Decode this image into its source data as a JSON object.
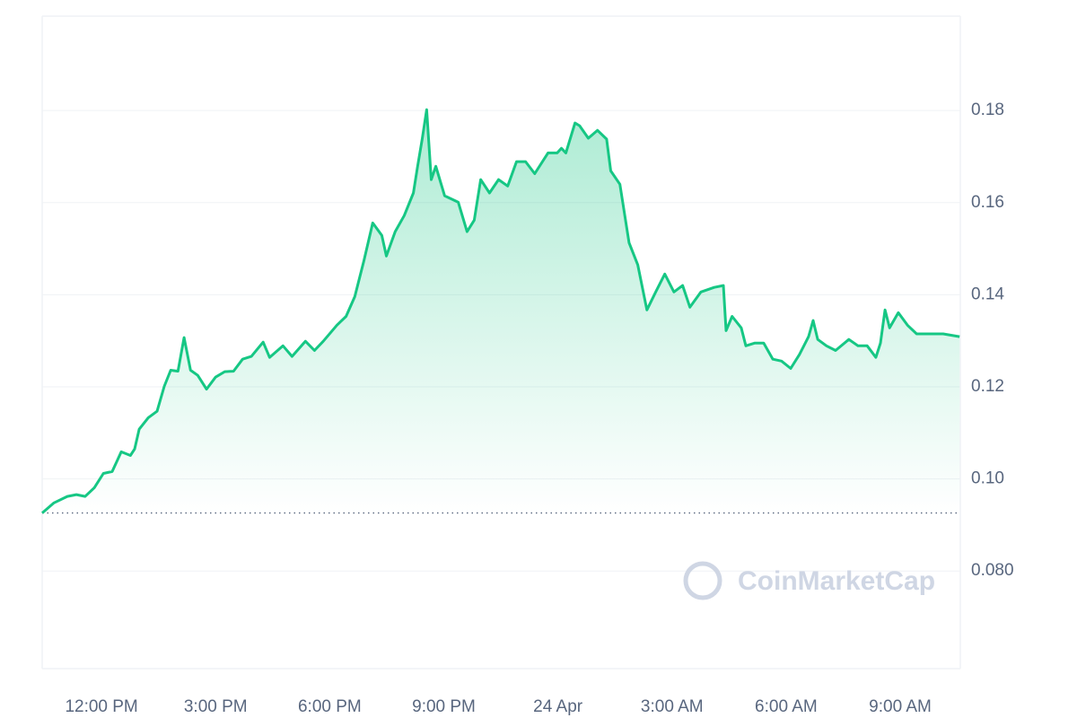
{
  "chart_data": {
    "type": "line",
    "watermark": "CoinMarketCap",
    "x": [
      -1.56,
      -1.25,
      -0.9,
      -0.66,
      -0.43,
      -0.19,
      0.05,
      0.28,
      0.52,
      0.76,
      0.87,
      0.99,
      1.23,
      1.46,
      1.65,
      1.82,
      2.01,
      2.17,
      2.34,
      2.53,
      2.76,
      3.0,
      3.24,
      3.47,
      3.71,
      3.94,
      4.25,
      4.42,
      4.77,
      5.01,
      5.36,
      5.6,
      5.83,
      6.19,
      6.43,
      6.66,
      6.9,
      7.13,
      7.37,
      7.49,
      7.72,
      7.96,
      8.2,
      8.31,
      8.43,
      8.55,
      8.67,
      8.79,
      9.02,
      9.38,
      9.61,
      9.8,
      9.97,
      10.2,
      10.44,
      10.68,
      10.91,
      11.15,
      11.39,
      11.74,
      11.98,
      12.09,
      12.21,
      12.45,
      12.57,
      12.8,
      13.04,
      13.28,
      13.39,
      13.63,
      13.87,
      14.1,
      14.34,
      14.57,
      14.81,
      15.05,
      15.28,
      15.47,
      15.76,
      16.11,
      16.35,
      16.42,
      16.58,
      16.82,
      16.94,
      17.17,
      17.41,
      17.65,
      17.88,
      18.12,
      18.35,
      18.59,
      18.71,
      18.83,
      19.06,
      19.3,
      19.65,
      19.89,
      20.13,
      20.36,
      20.48,
      20.6,
      20.72,
      20.95,
      21.19,
      21.43,
      21.78,
      22.13,
      22.56
    ],
    "series": [
      {
        "color": "#16c784",
        "values": [
          0.0926,
          0.0948,
          0.0962,
          0.0966,
          0.0962,
          0.0981,
          0.1012,
          0.1016,
          0.1059,
          0.1051,
          0.1065,
          0.1108,
          0.1133,
          0.1147,
          0.1201,
          0.1236,
          0.1234,
          0.1307,
          0.1236,
          0.1225,
          0.1195,
          0.1221,
          0.1233,
          0.1234,
          0.126,
          0.1266,
          0.1297,
          0.1264,
          0.1289,
          0.1266,
          0.1299,
          0.1279,
          0.1299,
          0.1334,
          0.1353,
          0.1396,
          0.1474,
          0.1556,
          0.1529,
          0.1484,
          0.1537,
          0.1572,
          0.1621,
          0.1679,
          0.1738,
          0.1802,
          0.165,
          0.1679,
          0.1615,
          0.1601,
          0.1537,
          0.1562,
          0.165,
          0.1621,
          0.165,
          0.1636,
          0.1689,
          0.1689,
          0.1663,
          0.1708,
          0.1708,
          0.1718,
          0.1708,
          0.1773,
          0.1767,
          0.174,
          0.1757,
          0.1738,
          0.1669,
          0.164,
          0.1513,
          0.1465,
          0.1367,
          0.1406,
          0.1445,
          0.1406,
          0.142,
          0.1373,
          0.1406,
          0.1416,
          0.142,
          0.1322,
          0.1353,
          0.1328,
          0.1289,
          0.1295,
          0.1295,
          0.126,
          0.1256,
          0.124,
          0.127,
          0.1309,
          0.1344,
          0.1303,
          0.1289,
          0.1279,
          0.1303,
          0.1289,
          0.1289,
          0.1264,
          0.1295,
          0.1367,
          0.1328,
          0.1361,
          0.1334,
          0.1315,
          0.1315,
          0.1315,
          0.1309
        ]
      }
    ],
    "baseline": 0.0926,
    "xlim": [
      -1.56,
      22.58
    ],
    "xticks": [
      {
        "value": 0,
        "label": "12:00 PM"
      },
      {
        "value": 3,
        "label": "3:00 PM"
      },
      {
        "value": 6,
        "label": "6:00 PM"
      },
      {
        "value": 9,
        "label": "9:00 PM"
      },
      {
        "value": 12,
        "label": "24 Apr"
      },
      {
        "value": 15,
        "label": "3:00 AM"
      },
      {
        "value": 18,
        "label": "6:00 AM"
      },
      {
        "value": 21,
        "label": "9:00 AM"
      }
    ],
    "ylim": [
      0.0588,
      0.2005
    ],
    "yticks": [
      {
        "value": 0.08,
        "label": "0.080"
      },
      {
        "value": 0.1,
        "label": "0.10"
      },
      0.12,
      0.14,
      0.16,
      0.18
    ],
    "grid": true
  }
}
